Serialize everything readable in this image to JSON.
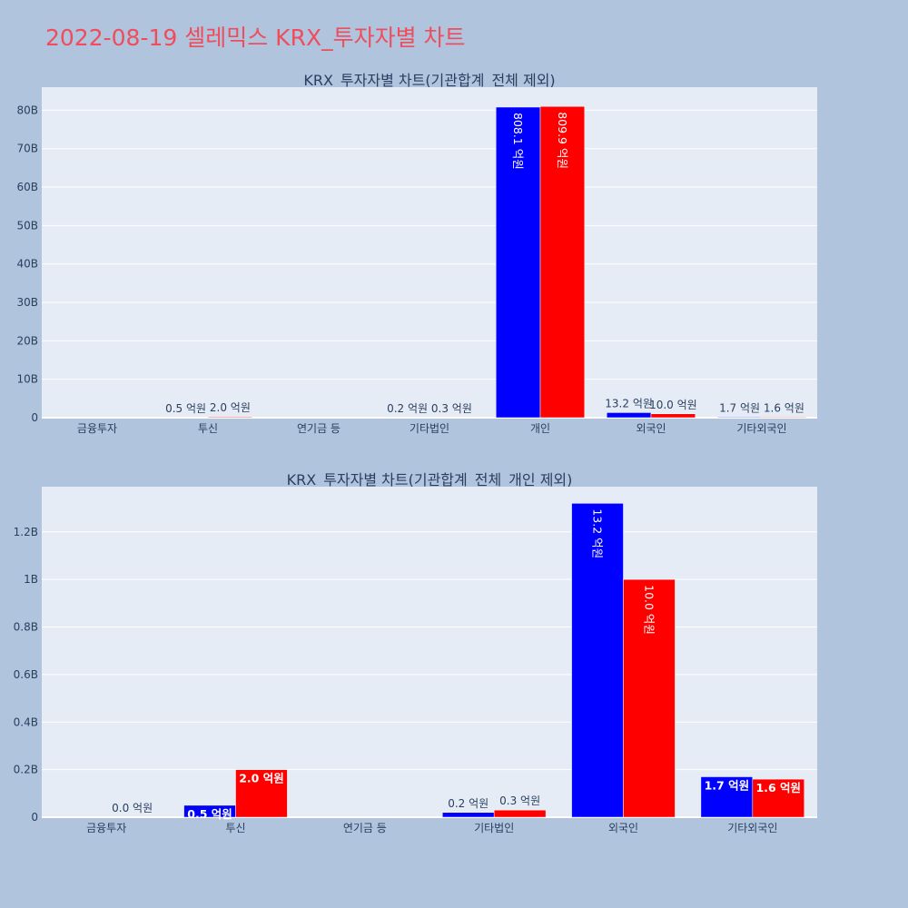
{
  "page_title": "2022-08-19 셀레믹스 KRX_투자자별 차트",
  "colors": {
    "background": "#b0c4de",
    "plot_bg": "#e5ecf6",
    "series_a": "#0000ff",
    "series_b": "#ff0000",
    "title": "#ef4d5b"
  },
  "chart_data": [
    {
      "type": "bar",
      "title": "KRX_투자자별 차트(기관합계_전체 제외)",
      "categories": [
        "금융투자",
        "투신",
        "연기금 등",
        "기타법인",
        "개인",
        "외국인",
        "기타외국인"
      ],
      "ylim": [
        0,
        86000000000
      ],
      "y_ticks": [
        0,
        10000000000,
        20000000000,
        30000000000,
        40000000000,
        50000000000,
        60000000000,
        70000000000,
        80000000000
      ],
      "y_tick_labels": [
        "0",
        "10B",
        "20B",
        "30B",
        "40B",
        "50B",
        "60B",
        "70B",
        "80B"
      ],
      "series": [
        {
          "color": "#0000ff",
          "values": [
            0,
            50000000,
            0,
            20000000,
            80810000000,
            1320000000,
            170000000
          ],
          "labels": [
            "",
            "0.5 억원",
            "",
            "0.2 억원",
            "808.1 억원",
            "13.2 억원",
            "1.7 억원"
          ]
        },
        {
          "color": "#ff0000",
          "values": [
            0,
            200000000,
            0,
            30000000,
            80990000000,
            1000000000,
            160000000
          ],
          "labels": [
            "",
            "2.0 억원",
            "",
            "0.3 억원",
            "809.9 억원",
            "10.0 억원",
            "1.6 억원"
          ]
        }
      ]
    },
    {
      "type": "bar",
      "title": "KRX_투자자별 차트(기관합계_전체_개인 제외)",
      "categories": [
        "금융투자",
        "투신",
        "연기금 등",
        "기타법인",
        "외국인",
        "기타외국인"
      ],
      "ylim": [
        0,
        1390000000
      ],
      "y_ticks": [
        0,
        200000000,
        400000000,
        600000000,
        800000000,
        1000000000,
        1200000000
      ],
      "y_tick_labels": [
        "0",
        "0.2B",
        "0.4B",
        "0.6B",
        "0.8B",
        "1B",
        "1.2B"
      ],
      "series": [
        {
          "color": "#0000ff",
          "values": [
            0,
            50000000,
            0,
            20000000,
            1320000000,
            170000000
          ],
          "labels": [
            "",
            "0.5 억원",
            "",
            "0.2 억원",
            "13.2 억원",
            "1.7 억원"
          ]
        },
        {
          "color": "#ff0000",
          "values": [
            0,
            200000000,
            0,
            30000000,
            1000000000,
            160000000
          ],
          "labels": [
            "0.0 억원",
            "2.0 억원",
            "",
            "0.3 억원",
            "10.0 억원",
            "1.6 억원"
          ]
        }
      ]
    }
  ]
}
